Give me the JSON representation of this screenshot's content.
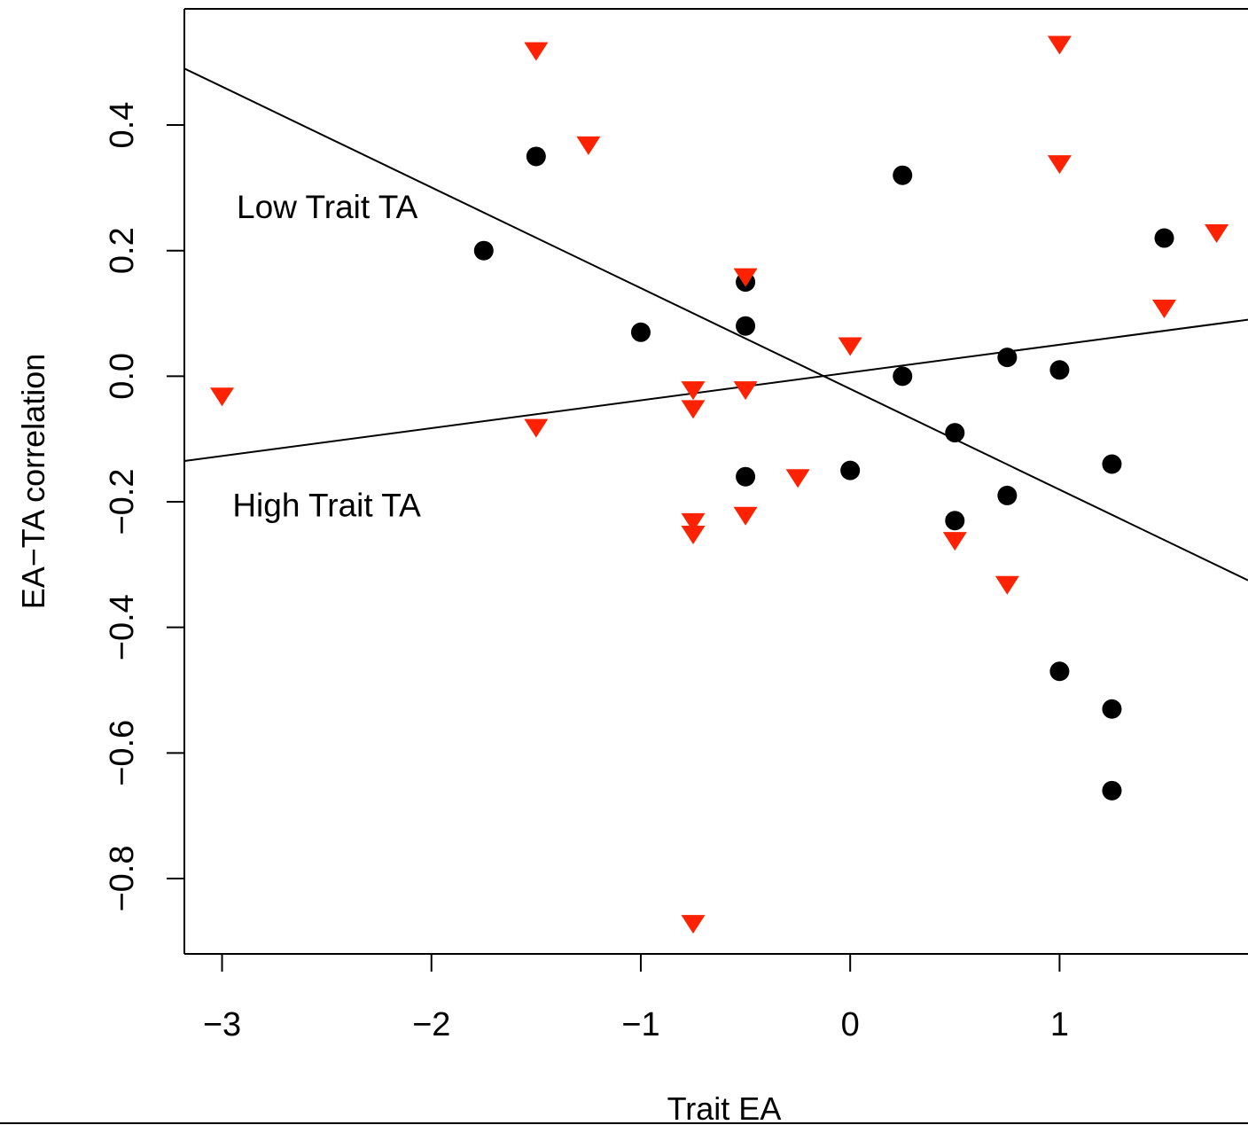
{
  "chart_data": {
    "type": "scatter",
    "title": "",
    "xlabel": "Trait EA",
    "ylabel": "EA−TA correlation",
    "xlim": [
      -3.18,
      1.9
    ],
    "ylim": [
      -0.92,
      0.585
    ],
    "x_ticks": [
      -3,
      -2,
      -1,
      0,
      1
    ],
    "x_tick_labels": [
      "−3",
      "−2",
      "−1",
      "0",
      "1"
    ],
    "y_ticks": [
      0.4,
      0.2,
      0.0,
      -0.2,
      -0.4,
      -0.6,
      -0.8
    ],
    "y_tick_labels": [
      "0.4",
      "0.2",
      "0.0",
      "−0.2",
      "−0.4",
      "−0.6",
      "−0.8"
    ],
    "grid": false,
    "colors": {
      "circles": "#000000",
      "triangles": "#ff2200",
      "lines": "#000000",
      "frame": "#000000"
    },
    "series": [
      {
        "marker": "circle",
        "color": "#000000",
        "points": [
          {
            "x": -1.5,
            "y": 0.35
          },
          {
            "x": -1.75,
            "y": 0.2
          },
          {
            "x": -1.0,
            "y": 0.07
          },
          {
            "x": -0.5,
            "y": 0.15
          },
          {
            "x": -0.5,
            "y": 0.08
          },
          {
            "x": -0.5,
            "y": -0.16
          },
          {
            "x": 0.0,
            "y": -0.15
          },
          {
            "x": 0.25,
            "y": 0.32
          },
          {
            "x": 0.25,
            "y": 0.0
          },
          {
            "x": 0.5,
            "y": -0.09
          },
          {
            "x": 0.5,
            "y": -0.23
          },
          {
            "x": 0.75,
            "y": 0.03
          },
          {
            "x": 0.75,
            "y": -0.19
          },
          {
            "x": 1.0,
            "y": 0.01
          },
          {
            "x": 1.0,
            "y": -0.47
          },
          {
            "x": 1.25,
            "y": -0.14
          },
          {
            "x": 1.25,
            "y": -0.53
          },
          {
            "x": 1.25,
            "y": -0.66
          },
          {
            "x": 1.5,
            "y": 0.22
          }
        ]
      },
      {
        "marker": "triangle-down",
        "color": "#ff2200",
        "points": [
          {
            "x": -3.0,
            "y": -0.03
          },
          {
            "x": -1.5,
            "y": 0.52
          },
          {
            "x": -1.5,
            "y": -0.08
          },
          {
            "x": -1.25,
            "y": 0.37
          },
          {
            "x": -0.75,
            "y": -0.02
          },
          {
            "x": -0.75,
            "y": -0.05
          },
          {
            "x": -0.75,
            "y": -0.23
          },
          {
            "x": -0.75,
            "y": -0.25
          },
          {
            "x": -0.75,
            "y": -0.87
          },
          {
            "x": -0.5,
            "y": 0.16
          },
          {
            "x": -0.5,
            "y": -0.02
          },
          {
            "x": -0.5,
            "y": -0.22
          },
          {
            "x": -0.25,
            "y": -0.16
          },
          {
            "x": 0.0,
            "y": 0.05
          },
          {
            "x": 0.5,
            "y": -0.26
          },
          {
            "x": 0.75,
            "y": -0.33
          },
          {
            "x": 1.0,
            "y": 0.53
          },
          {
            "x": 1.0,
            "y": 0.34
          },
          {
            "x": 1.5,
            "y": 0.11
          },
          {
            "x": 1.75,
            "y": 0.23
          }
        ]
      }
    ],
    "lines": [
      {
        "x": [
          -3.18,
          1.9
        ],
        "y": [
          0.49,
          -0.325
        ]
      },
      {
        "x": [
          -3.18,
          1.9
        ],
        "y": [
          -0.135,
          0.09
        ]
      }
    ],
    "annotations": [
      {
        "text": "Low Trait TA",
        "x": -2.93,
        "y": 0.27
      },
      {
        "text": "High Trait TA",
        "x": -2.95,
        "y": -0.205
      }
    ]
  }
}
